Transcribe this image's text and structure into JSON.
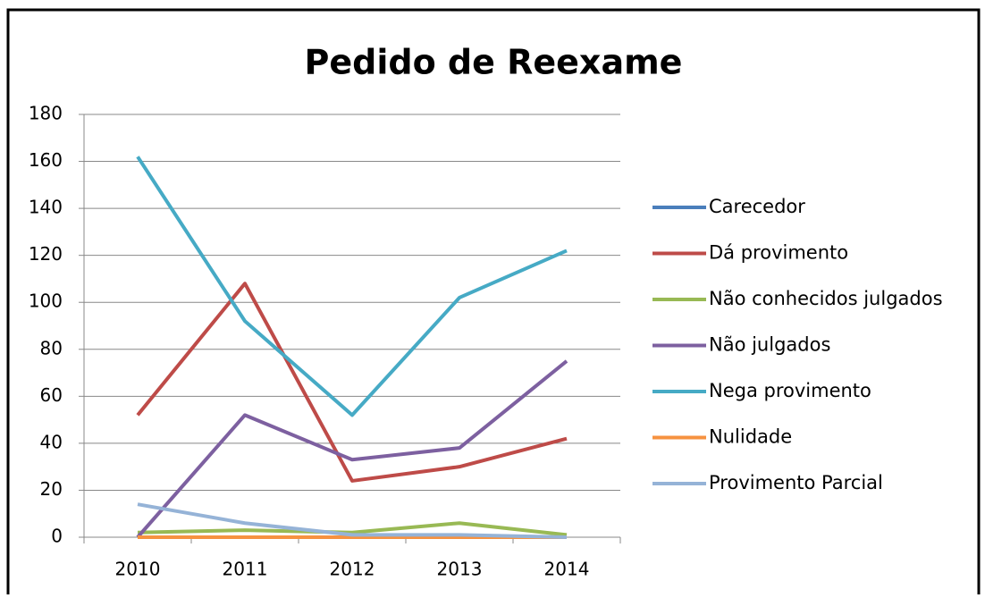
{
  "chart_data": {
    "type": "line",
    "title": "Pedido de Reexame",
    "categories": [
      "2010",
      "2011",
      "2012",
      "2013",
      "2014"
    ],
    "series": [
      {
        "name": "Carecedor",
        "color": "#4a7ebb",
        "values": [
          0,
          0,
          0,
          0,
          0
        ]
      },
      {
        "name": "Dá provimento",
        "color": "#be4b48",
        "values": [
          52,
          108,
          24,
          30,
          42
        ]
      },
      {
        "name": "Não conhecidos julgados",
        "color": "#98b954",
        "values": [
          2,
          3,
          2,
          6,
          1
        ]
      },
      {
        "name": "Não julgados",
        "color": "#7d60a0",
        "values": [
          0,
          52,
          33,
          38,
          75
        ]
      },
      {
        "name": "Nega provimento",
        "color": "#46aac5",
        "values": [
          162,
          92,
          52,
          102,
          122
        ]
      },
      {
        "name": "Nulidade",
        "color": "#f69240",
        "values": [
          0,
          0,
          0,
          0,
          0
        ]
      },
      {
        "name": "Provimento Parcial",
        "color": "#95b3d7",
        "values": [
          14,
          6,
          1,
          1,
          0
        ]
      }
    ],
    "ylim": [
      0,
      180
    ],
    "yticks": [
      0,
      20,
      40,
      60,
      80,
      100,
      120,
      140,
      160,
      180
    ],
    "grid": true,
    "legend": "right"
  }
}
